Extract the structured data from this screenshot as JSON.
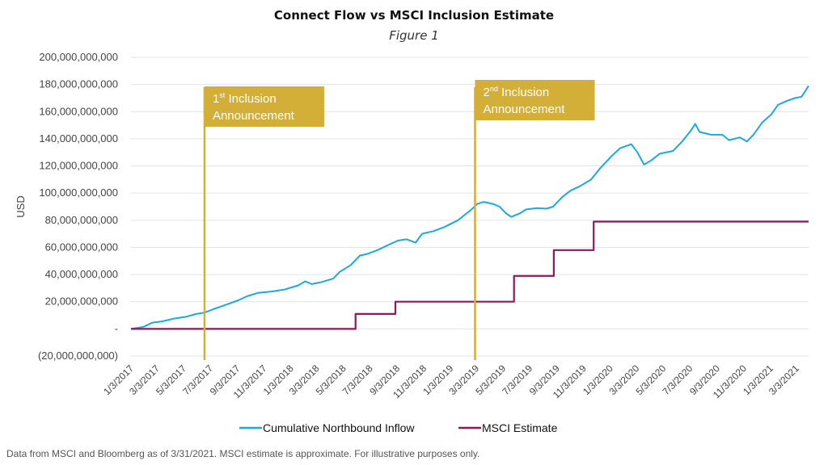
{
  "chart_data": {
    "type": "line",
    "title": "Connect Flow vs MSCI Inclusion Estimate",
    "subtitle": "Figure 1",
    "ylabel": "USD",
    "ylim": [
      -20000000000,
      200000000000
    ],
    "yticks": [
      {
        "value": 200000000000,
        "label": "200,000,000,000"
      },
      {
        "value": 180000000000,
        "label": "180,000,000,000"
      },
      {
        "value": 160000000000,
        "label": "160,000,000,000"
      },
      {
        "value": 140000000000,
        "label": "140,000,000,000"
      },
      {
        "value": 120000000000,
        "label": "120,000,000,000"
      },
      {
        "value": 100000000000,
        "label": "100,000,000,000"
      },
      {
        "value": 80000000000,
        "label": "80,000,000,000"
      },
      {
        "value": 60000000000,
        "label": "60,000,000,000"
      },
      {
        "value": 40000000000,
        "label": "40,000,000,000"
      },
      {
        "value": 20000000000,
        "label": "20,000,000,000"
      },
      {
        "value": 0,
        "label": "-"
      },
      {
        "value": -20000000000,
        "label": "(20,000,000,000)"
      }
    ],
    "xlim": [
      "2017-01-03",
      "2021-03-31"
    ],
    "xticks": [
      {
        "date": "2017-01-03",
        "label": "1/3/2017"
      },
      {
        "date": "2017-03-03",
        "label": "3/3/2017"
      },
      {
        "date": "2017-05-03",
        "label": "5/3/2017"
      },
      {
        "date": "2017-07-03",
        "label": "7/3/2017"
      },
      {
        "date": "2017-09-03",
        "label": "9/3/2017"
      },
      {
        "date": "2017-11-03",
        "label": "11/3/2017"
      },
      {
        "date": "2018-01-03",
        "label": "1/3/2018"
      },
      {
        "date": "2018-03-03",
        "label": "3/3/2018"
      },
      {
        "date": "2018-05-03",
        "label": "5/3/2018"
      },
      {
        "date": "2018-07-03",
        "label": "7/3/2018"
      },
      {
        "date": "2018-09-03",
        "label": "9/3/2018"
      },
      {
        "date": "2018-11-03",
        "label": "11/3/2018"
      },
      {
        "date": "2019-01-03",
        "label": "1/3/2019"
      },
      {
        "date": "2019-03-03",
        "label": "3/3/2019"
      },
      {
        "date": "2019-05-03",
        "label": "5/3/2019"
      },
      {
        "date": "2019-07-03",
        "label": "7/3/2019"
      },
      {
        "date": "2019-09-03",
        "label": "9/3/2019"
      },
      {
        "date": "2019-11-03",
        "label": "11/3/2019"
      },
      {
        "date": "2020-01-03",
        "label": "1/3/2020"
      },
      {
        "date": "2020-03-03",
        "label": "3/3/2020"
      },
      {
        "date": "2020-05-03",
        "label": "5/3/2020"
      },
      {
        "date": "2020-07-03",
        "label": "7/3/2020"
      },
      {
        "date": "2020-09-03",
        "label": "9/3/2020"
      },
      {
        "date": "2020-11-03",
        "label": "11/3/2020"
      },
      {
        "date": "2021-01-03",
        "label": "1/3/2021"
      },
      {
        "date": "2021-03-03",
        "label": "3/3/2021"
      }
    ],
    "grid": true,
    "legend_position": "bottom",
    "series": [
      {
        "name": "Cumulative Northbound Inflow",
        "color": "#1aaae2",
        "points": [
          [
            "2017-01-03",
            0
          ],
          [
            "2017-02-01",
            1500000000
          ],
          [
            "2017-02-20",
            4500000000
          ],
          [
            "2017-03-15",
            5500000000
          ],
          [
            "2017-04-10",
            7500000000
          ],
          [
            "2017-05-10",
            9000000000
          ],
          [
            "2017-06-01",
            11000000000
          ],
          [
            "2017-06-20",
            12000000000
          ],
          [
            "2017-07-10",
            14500000000
          ],
          [
            "2017-08-10",
            18000000000
          ],
          [
            "2017-09-05",
            21000000000
          ],
          [
            "2017-09-25",
            24000000000
          ],
          [
            "2017-10-20",
            26500000000
          ],
          [
            "2017-11-20",
            27500000000
          ],
          [
            "2017-12-20",
            29000000000
          ],
          [
            "2018-01-20",
            32000000000
          ],
          [
            "2018-02-05",
            35000000000
          ],
          [
            "2018-02-20",
            33000000000
          ],
          [
            "2018-03-15",
            34500000000
          ],
          [
            "2018-04-10",
            37000000000
          ],
          [
            "2018-04-25",
            42000000000
          ],
          [
            "2018-05-20",
            47000000000
          ],
          [
            "2018-06-10",
            54000000000
          ],
          [
            "2018-06-25",
            55000000000
          ],
          [
            "2018-07-20",
            58000000000
          ],
          [
            "2018-08-15",
            62000000000
          ],
          [
            "2018-09-05",
            65000000000
          ],
          [
            "2018-09-25",
            66000000000
          ],
          [
            "2018-10-15",
            63500000000
          ],
          [
            "2018-10-30",
            70000000000
          ],
          [
            "2018-11-25",
            72000000000
          ],
          [
            "2018-12-20",
            75000000000
          ],
          [
            "2019-01-20",
            80000000000
          ],
          [
            "2019-02-20",
            88000000000
          ],
          [
            "2019-03-05",
            92000000000
          ],
          [
            "2019-03-20",
            93500000000
          ],
          [
            "2019-04-10",
            92000000000
          ],
          [
            "2019-04-25",
            90000000000
          ],
          [
            "2019-05-10",
            85000000000
          ],
          [
            "2019-05-22",
            82500000000
          ],
          [
            "2019-06-10",
            85000000000
          ],
          [
            "2019-06-25",
            88000000000
          ],
          [
            "2019-07-20",
            89000000000
          ],
          [
            "2019-08-10",
            88500000000
          ],
          [
            "2019-08-25",
            90000000000
          ],
          [
            "2019-09-15",
            97000000000
          ],
          [
            "2019-10-05",
            102000000000
          ],
          [
            "2019-10-25",
            105000000000
          ],
          [
            "2019-11-20",
            110000000000
          ],
          [
            "2019-12-10",
            118000000000
          ],
          [
            "2020-01-05",
            127000000000
          ],
          [
            "2020-01-25",
            133000000000
          ],
          [
            "2020-02-20",
            136000000000
          ],
          [
            "2020-03-05",
            130000000000
          ],
          [
            "2020-03-20",
            121000000000
          ],
          [
            "2020-04-05",
            124000000000
          ],
          [
            "2020-04-25",
            129000000000
          ],
          [
            "2020-05-25",
            131000000000
          ],
          [
            "2020-06-15",
            138000000000
          ],
          [
            "2020-07-05",
            146000000000
          ],
          [
            "2020-07-15",
            151000000000
          ],
          [
            "2020-07-25",
            145000000000
          ],
          [
            "2020-08-20",
            143000000000
          ],
          [
            "2020-09-15",
            143000000000
          ],
          [
            "2020-09-30",
            139000000000
          ],
          [
            "2020-10-25",
            141000000000
          ],
          [
            "2020-11-10",
            138000000000
          ],
          [
            "2020-11-25",
            143000000000
          ],
          [
            "2020-12-15",
            152000000000
          ],
          [
            "2021-01-05",
            158000000000
          ],
          [
            "2021-01-20",
            165000000000
          ],
          [
            "2021-02-10",
            168000000000
          ],
          [
            "2021-02-28",
            170000000000
          ],
          [
            "2021-03-15",
            171000000000
          ],
          [
            "2021-03-25",
            176000000000
          ],
          [
            "2021-03-31",
            179000000000
          ]
        ]
      },
      {
        "name": "MSCI Estimate",
        "color": "#8b1a5a",
        "step": true,
        "points": [
          [
            "2017-01-03",
            0
          ],
          [
            "2018-05-31",
            11000000000
          ],
          [
            "2018-08-30",
            20000000000
          ],
          [
            "2019-05-28",
            39000000000
          ],
          [
            "2019-08-27",
            58000000000
          ],
          [
            "2019-11-26",
            79000000000
          ],
          [
            "2021-03-31",
            79000000000
          ]
        ]
      }
    ],
    "annotations": [
      {
        "date": "2017-06-20",
        "line1_main": "1",
        "line1_sup": "st",
        "line1_rest": " Inclusion",
        "line2": "Announcement",
        "color": "#d4af37"
      },
      {
        "date": "2019-02-28",
        "line1_main": "2",
        "line1_sup": "nd",
        "line1_rest": " Inclusion",
        "line2": "Announcement",
        "color": "#d4af37"
      }
    ]
  },
  "footnote": "Data from MSCI and Bloomberg as of 3/31/2021. MSCI estimate is approximate. For illustrative purposes only."
}
